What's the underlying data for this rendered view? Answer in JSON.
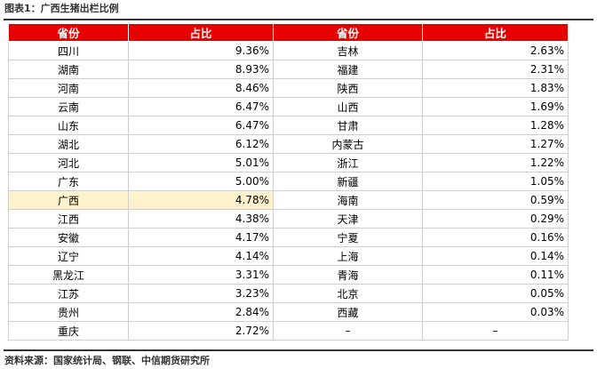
{
  "title": "图表1：广西生猪出栏比例",
  "source": "资料来源：国家统计局、钢联、中信期货研究所",
  "headers": [
    "省份",
    "占比",
    "省份",
    "占比"
  ],
  "rows": [
    {
      "p1": "四川",
      "v1": "9.36%",
      "p2": "吉林",
      "v2": "2.63%"
    },
    {
      "p1": "湖南",
      "v1": "8.93%",
      "p2": "福建",
      "v2": "2.31%"
    },
    {
      "p1": "河南",
      "v1": "8.46%",
      "p2": "陕西",
      "v2": "1.83%"
    },
    {
      "p1": "云南",
      "v1": "6.47%",
      "p2": "山西",
      "v2": "1.69%"
    },
    {
      "p1": "山东",
      "v1": "6.47%",
      "p2": "甘肃",
      "v2": "1.28%"
    },
    {
      "p1": "湖北",
      "v1": "6.12%",
      "p2": "内蒙古",
      "v2": "1.27%"
    },
    {
      "p1": "河北",
      "v1": "5.01%",
      "p2": "浙江",
      "v2": "1.22%"
    },
    {
      "p1": "广东",
      "v1": "5.00%",
      "p2": "新疆",
      "v2": "1.05%"
    },
    {
      "p1": "广西",
      "v1": "4.78%",
      "p2": "海南",
      "v2": "0.59%",
      "highlight": true
    },
    {
      "p1": "江西",
      "v1": "4.38%",
      "p2": "天津",
      "v2": "0.29%"
    },
    {
      "p1": "安徽",
      "v1": "4.17%",
      "p2": "宁夏",
      "v2": "0.16%"
    },
    {
      "p1": "辽宁",
      "v1": "4.14%",
      "p2": "上海",
      "v2": "0.14%"
    },
    {
      "p1": "黑龙江",
      "v1": "3.31%",
      "p2": "青海",
      "v2": "0.11%"
    },
    {
      "p1": "江苏",
      "v1": "3.23%",
      "p2": "北京",
      "v2": "0.05%"
    },
    {
      "p1": "贵州",
      "v1": "2.84%",
      "p2": "西藏",
      "v2": "0.03%"
    },
    {
      "p1": "重庆",
      "v1": "2.72%",
      "p2": "–",
      "v2": "–"
    }
  ],
  "colors": {
    "header_bg": "#e60000",
    "highlight_bg": "#fff2cc"
  }
}
